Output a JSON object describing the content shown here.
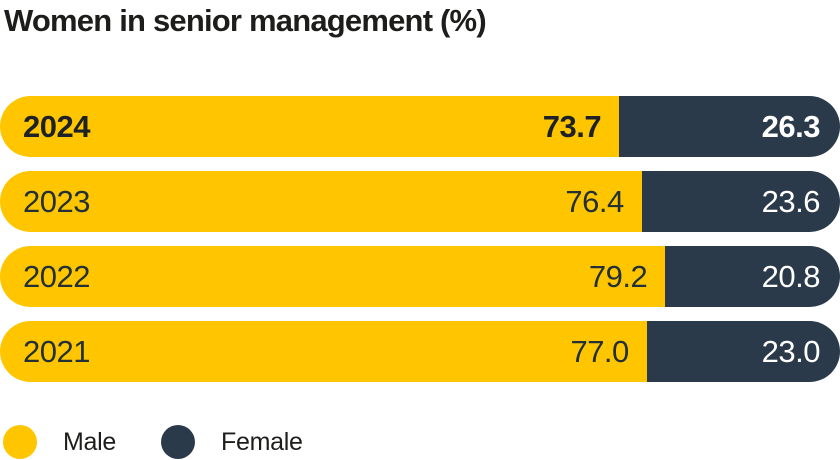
{
  "chart_data": {
    "type": "bar",
    "stacked": true,
    "orientation": "horizontal",
    "title": "Women in senior management (%)",
    "categories": [
      "2024",
      "2023",
      "2022",
      "2021"
    ],
    "series": [
      {
        "name": "Male",
        "color": "#ffc600",
        "values": [
          73.7,
          76.4,
          79.2,
          77.0
        ],
        "labels": [
          "73.7",
          "76.4",
          "79.2",
          "77.0"
        ]
      },
      {
        "name": "Female",
        "color": "#2a3a4a",
        "values": [
          26.3,
          23.6,
          20.8,
          23.0
        ],
        "labels": [
          "26.3",
          "23.6",
          "20.8",
          "23.0"
        ]
      }
    ],
    "xlim": [
      0,
      100
    ],
    "grid": false,
    "legend_position": "bottom",
    "highlighted_category": "2024",
    "text_colors": {
      "title": "#1d1d1b",
      "on_male_segment": "#243038",
      "on_female_segment": "#ffffff"
    }
  }
}
